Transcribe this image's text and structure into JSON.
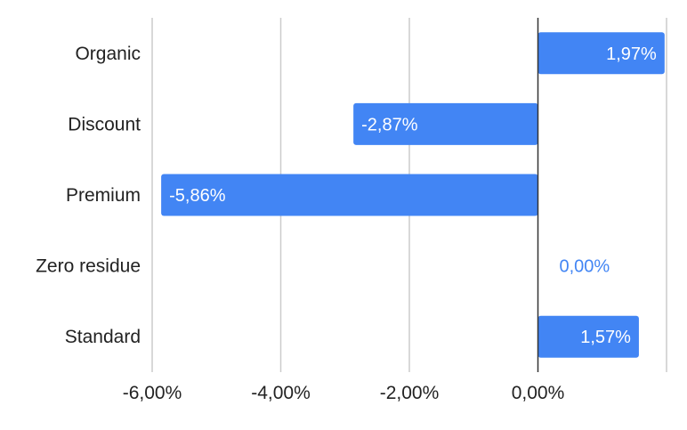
{
  "chart_data": {
    "type": "bar",
    "orientation": "horizontal",
    "categories": [
      "Organic",
      "Discount",
      "Premium",
      "Zero residue",
      "Standard"
    ],
    "values": [
      1.97,
      -2.87,
      -5.86,
      0.0,
      1.57
    ],
    "value_labels": [
      "1,97%",
      "-2,87%",
      "-5,86%",
      "0,00%",
      "1,57%"
    ],
    "x_ticks": [
      -6,
      -4,
      -2,
      0
    ],
    "x_tick_labels": [
      "-6,00%",
      "-4,00%",
      "-2,00%",
      "0,00%"
    ],
    "xlim": [
      -6,
      2
    ],
    "grid": true,
    "legend": "none",
    "title": "",
    "xlabel": "",
    "ylabel": "",
    "colors": {
      "bar": "#4285f4",
      "label_inside": "#ffffff",
      "label_outside": "#4285f4",
      "grid": "#cccccc",
      "zero_line": "#333333",
      "text": "#222222"
    }
  }
}
